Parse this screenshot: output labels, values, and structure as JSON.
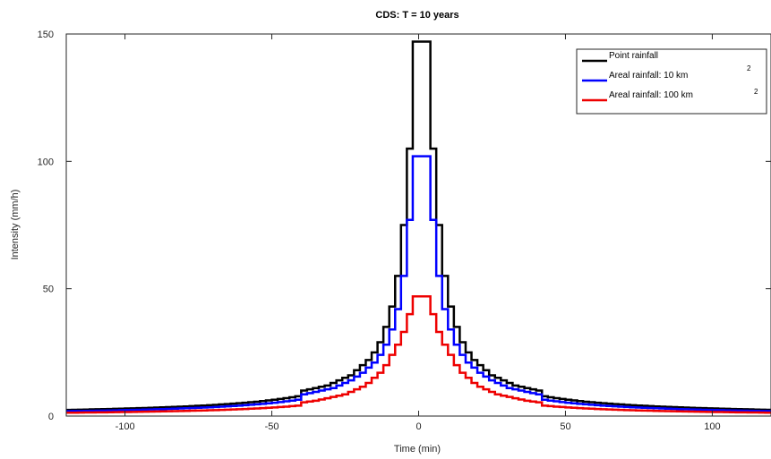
{
  "chart_data": {
    "type": "line",
    "title": "CDS: T = 10 years",
    "xlabel": "Time (min)",
    "ylabel": "Intensity (mm/h)",
    "xlim": [
      -120,
      120
    ],
    "ylim": [
      0,
      150
    ],
    "xticks": [
      -100,
      -50,
      0,
      50,
      100
    ],
    "yticks": [
      0,
      50,
      100,
      150
    ],
    "grid": false,
    "legend_position": "top-right",
    "step_minutes": 2,
    "series": [
      {
        "name": "Point rainfall",
        "color": "#000000",
        "left_half": [
          147,
          105,
          75,
          55,
          43,
          35,
          29,
          25,
          22,
          20,
          18,
          16,
          15,
          14,
          13,
          12,
          11.5,
          11,
          10.5,
          10
        ],
        "right_half": [
          147,
          105,
          75,
          55,
          43,
          35,
          29,
          25,
          22,
          20,
          18,
          16,
          15,
          14,
          13,
          12,
          11.5,
          11,
          10.5,
          10
        ],
        "tail": {
          "value_at_40min": 8.0,
          "value_at_120min": 2.4
        }
      },
      {
        "name": "Areal rainfall: 10 km",
        "name_sup": "2",
        "color": "#0000ff",
        "left_half": [
          102,
          77,
          55,
          42,
          34,
          28,
          24,
          21,
          19,
          17,
          15.5,
          14,
          13,
          12,
          11,
          10.5,
          10,
          9.5,
          9,
          8.5
        ],
        "right_half": [
          102,
          77,
          55,
          42,
          34,
          28,
          24,
          21,
          19,
          17,
          15.5,
          14,
          13,
          12,
          11,
          10.5,
          10,
          9.5,
          9,
          8.5
        ],
        "tail": {
          "value_at_40min": 6.6,
          "value_at_120min": 1.9
        }
      },
      {
        "name": "Areal rainfall: 100 km",
        "name_sup": "2",
        "color": "#ee0000",
        "left_half": [
          47,
          40,
          33,
          28,
          24,
          20,
          17,
          15,
          13,
          11.5,
          10.5,
          9.5,
          8.5,
          8,
          7.5,
          7,
          6.5,
          6,
          5.7,
          5.4
        ],
        "right_half": [
          47,
          40,
          33,
          28,
          24,
          20,
          17,
          15,
          13,
          11.5,
          10.5,
          9.5,
          8.5,
          8,
          7.5,
          7,
          6.5,
          6,
          5.7,
          5.4
        ],
        "tail": {
          "value_at_40min": 4.2,
          "value_at_120min": 1.3
        }
      }
    ]
  }
}
